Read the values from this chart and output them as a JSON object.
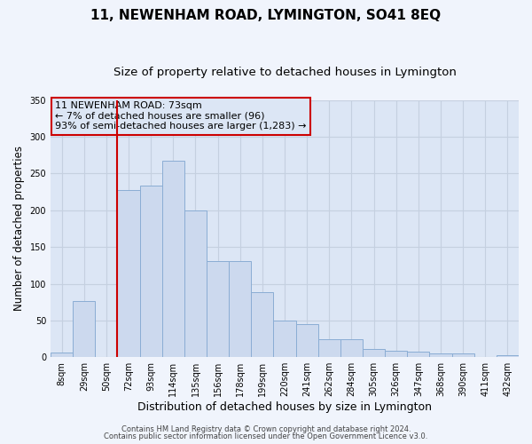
{
  "title": "11, NEWENHAM ROAD, LYMINGTON, SO41 8EQ",
  "subtitle": "Size of property relative to detached houses in Lymington",
  "xlabel": "Distribution of detached houses by size in Lymington",
  "ylabel": "Number of detached properties",
  "bar_labels": [
    "8sqm",
    "29sqm",
    "50sqm",
    "72sqm",
    "93sqm",
    "114sqm",
    "135sqm",
    "156sqm",
    "178sqm",
    "199sqm",
    "220sqm",
    "241sqm",
    "262sqm",
    "284sqm",
    "305sqm",
    "326sqm",
    "347sqm",
    "368sqm",
    "390sqm",
    "411sqm",
    "432sqm"
  ],
  "bar_values": [
    6,
    77,
    0,
    228,
    234,
    268,
    200,
    131,
    131,
    88,
    50,
    45,
    25,
    25,
    11,
    9,
    8,
    5,
    5,
    0,
    3
  ],
  "bar_color": "#ccd9ee",
  "bar_edgecolor": "#8aadd4",
  "vline_color": "#cc0000",
  "vline_index": 3,
  "ylim": [
    0,
    350
  ],
  "yticks": [
    0,
    50,
    100,
    150,
    200,
    250,
    300,
    350
  ],
  "annotation_line1": "11 NEWENHAM ROAD: 73sqm",
  "annotation_line2": "← 7% of detached houses are smaller (96)",
  "annotation_line3": "93% of semi-detached houses are larger (1,283) →",
  "annotation_box_edgecolor": "#cc0000",
  "footer1": "Contains HM Land Registry data © Crown copyright and database right 2024.",
  "footer2": "Contains public sector information licensed under the Open Government Licence v3.0.",
  "plot_bg_color": "#dce6f5",
  "fig_bg_color": "#f0f4fc",
  "grid_color": "#c5d0e0",
  "title_fontsize": 11,
  "subtitle_fontsize": 9.5,
  "ylabel_fontsize": 8.5,
  "xlabel_fontsize": 9,
  "annotation_fontsize": 8,
  "footer_fontsize": 6,
  "tick_fontsize": 7
}
